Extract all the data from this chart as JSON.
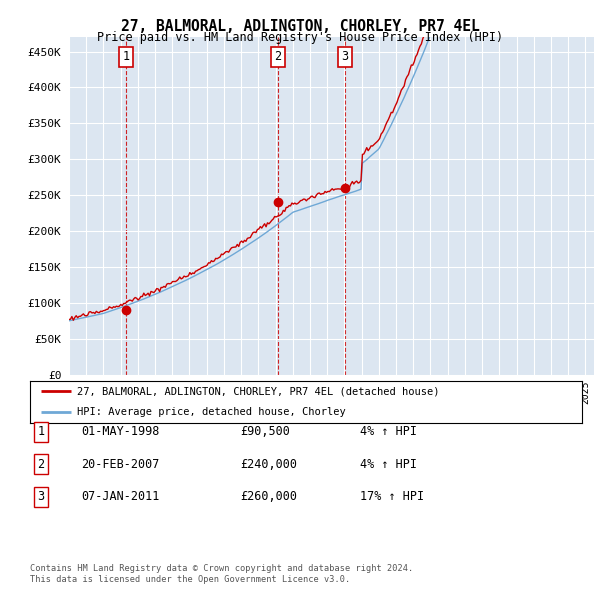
{
  "title": "27, BALMORAL, ADLINGTON, CHORLEY, PR7 4EL",
  "subtitle": "Price paid vs. HM Land Registry's House Price Index (HPI)",
  "hpi_label": "HPI: Average price, detached house, Chorley",
  "property_label": "27, BALMORAL, ADLINGTON, CHORLEY, PR7 4EL (detached house)",
  "footer1": "Contains HM Land Registry data © Crown copyright and database right 2024.",
  "footer2": "This data is licensed under the Open Government Licence v3.0.",
  "transactions": [
    {
      "num": 1,
      "date": "01-MAY-1998",
      "price": 90500,
      "year": 1998.33,
      "hpi_pct": "4% ↑ HPI"
    },
    {
      "num": 2,
      "date": "20-FEB-2007",
      "price": 240000,
      "year": 2007.12,
      "hpi_pct": "4% ↑ HPI"
    },
    {
      "num": 3,
      "date": "07-JAN-2011",
      "price": 260000,
      "year": 2011.03,
      "hpi_pct": "17% ↑ HPI"
    }
  ],
  "plot_bg_color": "#dce6f1",
  "hpi_line_color": "#6fa8d6",
  "property_line_color": "#cc0000",
  "ylim": [
    0,
    470000
  ],
  "xlim_start": 1995,
  "xlim_end": 2025.5,
  "yticks": [
    0,
    50000,
    100000,
    150000,
    200000,
    250000,
    300000,
    350000,
    400000,
    450000
  ],
  "num_points": 366
}
